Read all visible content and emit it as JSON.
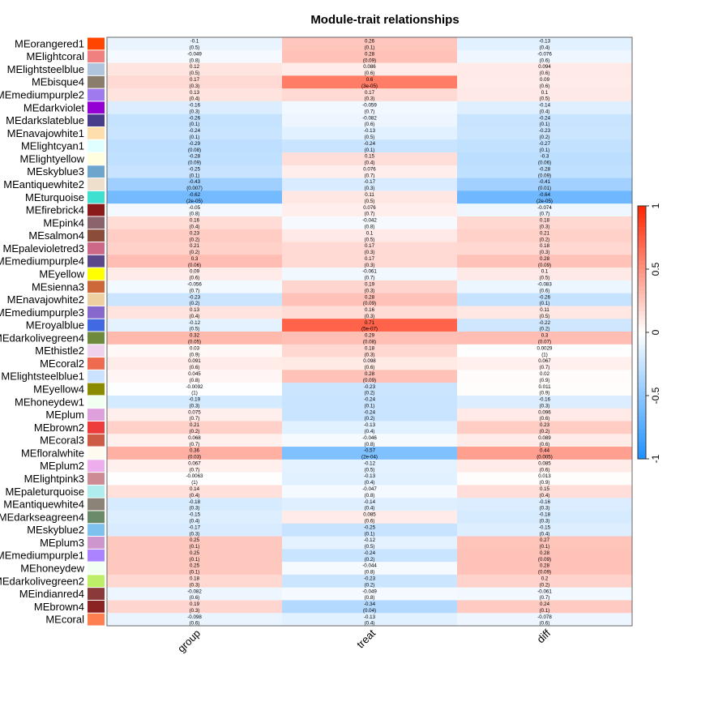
{
  "chart_data": {
    "type": "heatmap",
    "title": "Module-trait relationships",
    "columns": [
      "group",
      "treat",
      "diff"
    ],
    "rows": [
      {
        "name": "MEorangered1",
        "color": "#FF4500",
        "cells": [
          [
            "-0.1",
            "(0.5)"
          ],
          [
            "0.26",
            "(0.1)"
          ],
          [
            "-0.13",
            "(0.4)"
          ]
        ]
      },
      {
        "name": "MElightcoral",
        "color": "#F08080",
        "cells": [
          [
            "-0.049",
            "(0.8)"
          ],
          [
            "0.28",
            "(0.09)"
          ],
          [
            "-0.076",
            "(0.6)"
          ]
        ]
      },
      {
        "name": "MElightsteelblue",
        "color": "#B0C4DE",
        "cells": [
          [
            "0.12",
            "(0.5)"
          ],
          [
            "0.086",
            "(0.6)"
          ],
          [
            "0.094",
            "(0.6)"
          ]
        ]
      },
      {
        "name": "MEbisque4",
        "color": "#8B7D6B",
        "cells": [
          [
            "0.17",
            "(0.3)"
          ],
          [
            "0.6",
            "(3e-05)"
          ],
          [
            "0.09",
            "(0.6)"
          ]
        ]
      },
      {
        "name": "MEmediumpurple2",
        "color": "#9F79EE",
        "cells": [
          [
            "0.13",
            "(0.4)"
          ],
          [
            "0.17",
            "(0.3)"
          ],
          [
            "0.1",
            "(0.5)"
          ]
        ]
      },
      {
        "name": "MEdarkviolet",
        "color": "#9400D3",
        "cells": [
          [
            "-0.16",
            "(0.3)"
          ],
          [
            "-0.059",
            "(0.7)"
          ],
          [
            "-0.14",
            "(0.4)"
          ]
        ]
      },
      {
        "name": "MEdarkslateblue",
        "color": "#483D8B",
        "cells": [
          [
            "-0.26",
            "(0.1)"
          ],
          [
            "-0.082",
            "(0.6)"
          ],
          [
            "-0.24",
            "(0.1)"
          ]
        ]
      },
      {
        "name": "MEnavajowhite1",
        "color": "#FFDEAD",
        "cells": [
          [
            "-0.24",
            "(0.1)"
          ],
          [
            "-0.13",
            "(0.5)"
          ],
          [
            "-0.23",
            "(0.2)"
          ]
        ]
      },
      {
        "name": "MElightcyan1",
        "color": "#E0FFFF",
        "cells": [
          [
            "-0.29",
            "(0.08)"
          ],
          [
            "-0.24",
            "(0.1)"
          ],
          [
            "-0.27",
            "(0.1)"
          ]
        ]
      },
      {
        "name": "MElightyellow",
        "color": "#FFFFE0",
        "cells": [
          [
            "-0.28",
            "(0.09)"
          ],
          [
            "0.15",
            "(0.4)"
          ],
          [
            "-0.3",
            "(0.06)"
          ]
        ]
      },
      {
        "name": "MEskyblue3",
        "color": "#6CA6CD",
        "cells": [
          [
            "-0.25",
            "(0.1)"
          ],
          [
            "0.076",
            "(0.7)"
          ],
          [
            "-0.28",
            "(0.09)"
          ]
        ]
      },
      {
        "name": "MEantiquewhite2",
        "color": "#EEDFCC",
        "cells": [
          [
            "-0.43",
            "(0.007)"
          ],
          [
            "-0.17",
            "(0.3)"
          ],
          [
            "-0.41",
            "(0.01)"
          ]
        ]
      },
      {
        "name": "MEturquoise",
        "color": "#40E0D0",
        "cells": [
          [
            "-0.62",
            "(2e-05)"
          ],
          [
            "0.11",
            "(0.5)"
          ],
          [
            "-0.64",
            "(2e-05)"
          ]
        ]
      },
      {
        "name": "MEfirebrick4",
        "color": "#8B1A1A",
        "cells": [
          [
            "-0.05",
            "(0.8)"
          ],
          [
            "0.076",
            "(0.7)"
          ],
          [
            "-0.074",
            "(0.7)"
          ]
        ]
      },
      {
        "name": "MEpink4",
        "color": "#8B636C",
        "cells": [
          [
            "0.16",
            "(0.4)"
          ],
          [
            "-0.042",
            "(0.8)"
          ],
          [
            "0.18",
            "(0.3)"
          ]
        ]
      },
      {
        "name": "MEsalmon4",
        "color": "#8B4C39",
        "cells": [
          [
            "0.23",
            "(0.2)"
          ],
          [
            "0.1",
            "(0.5)"
          ],
          [
            "0.21",
            "(0.2)"
          ]
        ]
      },
      {
        "name": "MEpalevioletred3",
        "color": "#CD6889",
        "cells": [
          [
            "0.21",
            "(0.2)"
          ],
          [
            "0.17",
            "(0.3)"
          ],
          [
            "0.18",
            "(0.3)"
          ]
        ]
      },
      {
        "name": "MEmediumpurple4",
        "color": "#5D478B",
        "cells": [
          [
            "0.3",
            "(0.06)"
          ],
          [
            "0.17",
            "(0.3)"
          ],
          [
            "0.28",
            "(0.09)"
          ]
        ]
      },
      {
        "name": "MEyellow",
        "color": "#FFFF00",
        "cells": [
          [
            "0.09",
            "(0.6)"
          ],
          [
            "-0.061",
            "(0.7)"
          ],
          [
            "0.1",
            "(0.5)"
          ]
        ]
      },
      {
        "name": "MEsienna3",
        "color": "#CD6839",
        "cells": [
          [
            "-0.056",
            "(0.7)"
          ],
          [
            "0.19",
            "(0.3)"
          ],
          [
            "-0.083",
            "(0.6)"
          ]
        ]
      },
      {
        "name": "MEnavajowhite2",
        "color": "#EECFA1",
        "cells": [
          [
            "-0.23",
            "(0.2)"
          ],
          [
            "0.28",
            "(0.09)"
          ],
          [
            "-0.26",
            "(0.1)"
          ]
        ]
      },
      {
        "name": "MEmediumpurple3",
        "color": "#8968CD",
        "cells": [
          [
            "0.13",
            "(0.4)"
          ],
          [
            "0.16",
            "(0.3)"
          ],
          [
            "0.11",
            "(0.5)"
          ]
        ]
      },
      {
        "name": "MEroyalblue",
        "color": "#4169E1",
        "cells": [
          [
            "-0.12",
            "(0.5)"
          ],
          [
            "0.71",
            "(5e-07)"
          ],
          [
            "-0.22",
            "(0.2)"
          ]
        ]
      },
      {
        "name": "MEdarkolivegreen4",
        "color": "#6E8B3D",
        "cells": [
          [
            "0.32",
            "(0.05)"
          ],
          [
            "0.29",
            "(0.08)"
          ],
          [
            "0.3",
            "(0.07)"
          ]
        ]
      },
      {
        "name": "MEthistle2",
        "color": "#EED2EE",
        "cells": [
          [
            "0.03",
            "(0.9)"
          ],
          [
            "0.18",
            "(0.3)"
          ],
          [
            "0.0029",
            "(1)"
          ]
        ]
      },
      {
        "name": "MEcoral2",
        "color": "#EE6A50",
        "cells": [
          [
            "0.091",
            "(0.6)"
          ],
          [
            "0.098",
            "(0.6)"
          ],
          [
            "0.067",
            "(0.7)"
          ]
        ]
      },
      {
        "name": "MElightsteelblue1",
        "color": "#CAE1FF",
        "cells": [
          [
            "0.045",
            "(0.8)"
          ],
          [
            "0.28",
            "(0.09)"
          ],
          [
            "0.02",
            "(0.9)"
          ]
        ]
      },
      {
        "name": "MEyellow4",
        "color": "#8B8B00",
        "cells": [
          [
            "-0.0092",
            "(1)"
          ],
          [
            "-0.23",
            "(0.2)"
          ],
          [
            "0.011",
            "(0.9)"
          ]
        ]
      },
      {
        "name": "MEhoneydew1",
        "color": "#F0FFF0",
        "cells": [
          [
            "-0.19",
            "(0.3)"
          ],
          [
            "-0.24",
            "(0.1)"
          ],
          [
            "-0.16",
            "(0.3)"
          ]
        ]
      },
      {
        "name": "MEplum",
        "color": "#DDA0DD",
        "cells": [
          [
            "0.075",
            "(0.7)"
          ],
          [
            "-0.24",
            "(0.2)"
          ],
          [
            "0.096",
            "(0.6)"
          ]
        ]
      },
      {
        "name": "MEbrown2",
        "color": "#EE3B3B",
        "cells": [
          [
            "0.21",
            "(0.2)"
          ],
          [
            "-0.13",
            "(0.4)"
          ],
          [
            "0.23",
            "(0.2)"
          ]
        ]
      },
      {
        "name": "MEcoral3",
        "color": "#CD5B45",
        "cells": [
          [
            "0.068",
            "(0.7)"
          ],
          [
            "-0.046",
            "(0.8)"
          ],
          [
            "0.089",
            "(0.6)"
          ]
        ]
      },
      {
        "name": "MEfloralwhite",
        "color": "#FFFAF0",
        "cells": [
          [
            "0.36",
            "(0.03)"
          ],
          [
            "-0.57",
            "(2e-04)"
          ],
          [
            "0.44",
            "(0.005)"
          ]
        ]
      },
      {
        "name": "MEplum2",
        "color": "#EEAEEE",
        "cells": [
          [
            "0.067",
            "(0.7)"
          ],
          [
            "-0.12",
            "(0.5)"
          ],
          [
            "0.085",
            "(0.6)"
          ]
        ]
      },
      {
        "name": "MElightpink3",
        "color": "#CD8C95",
        "cells": [
          [
            "-0.0063",
            "(1)"
          ],
          [
            "-0.13",
            "(0.4)"
          ],
          [
            "0.013",
            "(0.9)"
          ]
        ]
      },
      {
        "name": "MEpaleturquoise",
        "color": "#AFEEEE",
        "cells": [
          [
            "0.14",
            "(0.4)"
          ],
          [
            "-0.047",
            "(0.8)"
          ],
          [
            "0.15",
            "(0.4)"
          ]
        ]
      },
      {
        "name": "MEantiquewhite4",
        "color": "#8B8378",
        "cells": [
          [
            "-0.18",
            "(0.3)"
          ],
          [
            "-0.14",
            "(0.4)"
          ],
          [
            "-0.16",
            "(0.3)"
          ]
        ]
      },
      {
        "name": "MEdarkseagreen4",
        "color": "#698B69",
        "cells": [
          [
            "-0.15",
            "(0.4)"
          ],
          [
            "0.085",
            "(0.6)"
          ],
          [
            "-0.18",
            "(0.3)"
          ]
        ]
      },
      {
        "name": "MEskyblue2",
        "color": "#7EC0EE",
        "cells": [
          [
            "-0.17",
            "(0.3)"
          ],
          [
            "-0.25",
            "(0.1)"
          ],
          [
            "-0.15",
            "(0.4)"
          ]
        ]
      },
      {
        "name": "MEplum3",
        "color": "#CD96CD",
        "cells": [
          [
            "0.25",
            "(0.1)"
          ],
          [
            "-0.12",
            "(0.5)"
          ],
          [
            "0.27",
            "(0.1)"
          ]
        ]
      },
      {
        "name": "MEmediumpurple1",
        "color": "#AB82FF",
        "cells": [
          [
            "0.25",
            "(0.1)"
          ],
          [
            "-0.24",
            "(0.2)"
          ],
          [
            "0.28",
            "(0.09)"
          ]
        ]
      },
      {
        "name": "MEhoneydew",
        "color": "#F0FFF0",
        "cells": [
          [
            "0.25",
            "(0.1)"
          ],
          [
            "-0.044",
            "(0.8)"
          ],
          [
            "0.28",
            "(0.09)"
          ]
        ]
      },
      {
        "name": "MEdarkolivegreen2",
        "color": "#BCEE68",
        "cells": [
          [
            "0.18",
            "(0.3)"
          ],
          [
            "-0.23",
            "(0.2)"
          ],
          [
            "0.2",
            "(0.2)"
          ]
        ]
      },
      {
        "name": "MEindianred4",
        "color": "#8B3A3A",
        "cells": [
          [
            "-0.082",
            "(0.6)"
          ],
          [
            "-0.049",
            "(0.8)"
          ],
          [
            "-0.061",
            "(0.7)"
          ]
        ]
      },
      {
        "name": "MEbrown4",
        "color": "#8B2323",
        "cells": [
          [
            "0.19",
            "(0.3)"
          ],
          [
            "-0.34",
            "(0.04)"
          ],
          [
            "0.24",
            "(0.1)"
          ]
        ]
      },
      {
        "name": "MEcoral",
        "color": "#FF7F50",
        "cells": [
          [
            "-0.098",
            "(0.6)"
          ],
          [
            "-0.13",
            "(0.4)"
          ],
          [
            "-0.078",
            "(0.6)"
          ]
        ]
      }
    ],
    "colorbar": {
      "range": [
        -1,
        1
      ],
      "ticks": [
        "1",
        "0.5",
        "0",
        "-0.5",
        "-1"
      ],
      "low_color": "#1E90FF",
      "mid_color": "#FFFFFF",
      "high_color": "#FF2400"
    }
  }
}
